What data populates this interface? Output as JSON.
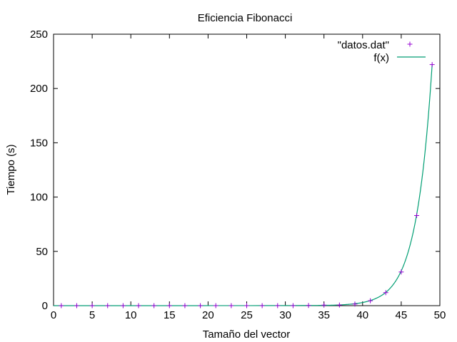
{
  "chart_data": {
    "type": "scatter",
    "title": "Eficiencia Fibonacci",
    "xlabel": "Tamaño del vector",
    "ylabel": "Tiempo (s)",
    "xlim": [
      0,
      50
    ],
    "ylim": [
      0,
      250
    ],
    "x_ticks": [
      0,
      5,
      10,
      15,
      20,
      25,
      30,
      35,
      40,
      45,
      50
    ],
    "y_ticks": [
      0,
      50,
      100,
      150,
      200,
      250
    ],
    "grid": false,
    "legend_position": "top-right",
    "series": [
      {
        "name": "\"datos.dat\"",
        "kind": "points",
        "marker": "plus",
        "color": "#9400d3",
        "x": [
          1,
          3,
          5,
          7,
          9,
          11,
          13,
          15,
          17,
          19,
          21,
          23,
          25,
          27,
          29,
          31,
          33,
          35,
          37,
          39,
          41,
          43,
          45,
          47,
          49
        ],
        "y": [
          0,
          0,
          0,
          0,
          0,
          0,
          0,
          0,
          0,
          0,
          0,
          0,
          0,
          0,
          0,
          0,
          0.2,
          0.5,
          0.6,
          1.5,
          4.5,
          12,
          31,
          83,
          222
        ]
      },
      {
        "name": "f(x)",
        "kind": "line",
        "color": "#009e73",
        "x": [
          0,
          34,
          36,
          38,
          40,
          41,
          42,
          43,
          44,
          45,
          46,
          47,
          48,
          49
        ],
        "y": [
          0,
          0.2,
          0.4,
          1.1,
          2.9,
          4.7,
          7.6,
          12.2,
          19.8,
          32,
          52,
          84,
          136,
          222
        ]
      }
    ]
  }
}
